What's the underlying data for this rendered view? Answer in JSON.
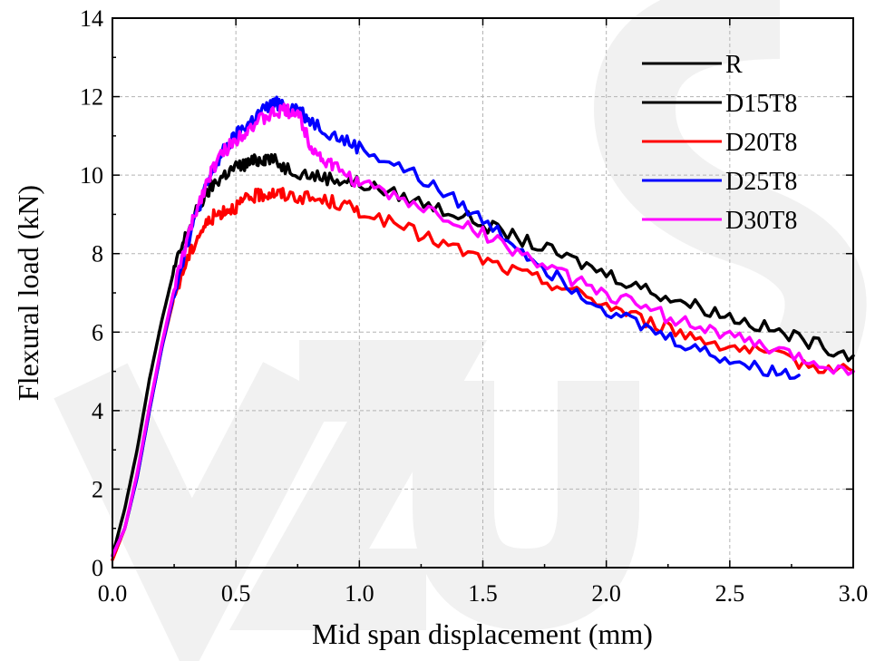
{
  "chart_data": {
    "type": "line",
    "title": "",
    "xlabel": "Mid span displacement (mm)",
    "ylabel": "Flexural load (kN)",
    "xlim": [
      0,
      3.0
    ],
    "ylim": [
      0,
      14
    ],
    "xticks": [
      "0.0",
      "0.5",
      "1.0",
      "1.5",
      "2.0",
      "2.5",
      "3.0"
    ],
    "yticks": [
      "0",
      "2",
      "4",
      "6",
      "8",
      "10",
      "12",
      "14"
    ],
    "grid": true,
    "legend_position": "top-right",
    "series": [
      {
        "name": "R",
        "color": "#000000",
        "x": [],
        "y": []
      },
      {
        "name": "D15T8",
        "color": "#000000",
        "x": [
          0,
          0.05,
          0.1,
          0.15,
          0.2,
          0.25,
          0.3,
          0.35,
          0.4,
          0.45,
          0.5,
          0.55,
          0.6,
          0.63,
          0.7,
          0.8,
          0.9,
          1.0,
          1.2,
          1.4,
          1.6,
          1.8,
          2.0,
          2.2,
          2.4,
          2.6,
          2.8,
          3.0
        ],
        "y": [
          0.3,
          1.5,
          3.0,
          4.8,
          6.3,
          7.6,
          8.5,
          9.2,
          9.7,
          10.0,
          10.2,
          10.3,
          10.4,
          10.45,
          10.2,
          10.0,
          9.9,
          9.8,
          9.4,
          9.0,
          8.5,
          8.0,
          7.5,
          7.0,
          6.6,
          6.2,
          5.8,
          5.4
        ]
      },
      {
        "name": "D20T8",
        "color": "#ff0000",
        "x": [
          0,
          0.05,
          0.1,
          0.15,
          0.2,
          0.25,
          0.3,
          0.35,
          0.4,
          0.45,
          0.5,
          0.55,
          0.6,
          0.65,
          0.7,
          0.8,
          0.9,
          1.0,
          1.2,
          1.4,
          1.6,
          1.8,
          2.0,
          2.2,
          2.4,
          2.6,
          2.8,
          3.0
        ],
        "y": [
          0.2,
          1.0,
          2.3,
          4.0,
          5.6,
          6.9,
          7.8,
          8.5,
          8.9,
          9.1,
          9.2,
          9.4,
          9.5,
          9.55,
          9.5,
          9.4,
          9.3,
          9.1,
          8.6,
          8.1,
          7.6,
          7.2,
          6.7,
          6.2,
          5.8,
          5.5,
          5.2,
          5.0
        ]
      },
      {
        "name": "D25T8",
        "color": "#0000ff",
        "x": [
          0,
          0.05,
          0.1,
          0.15,
          0.2,
          0.25,
          0.3,
          0.35,
          0.4,
          0.45,
          0.5,
          0.55,
          0.6,
          0.65,
          0.68,
          0.75,
          0.8,
          0.9,
          1.0,
          1.2,
          1.4,
          1.6,
          1.8,
          2.0,
          2.2,
          2.4,
          2.6,
          2.78
        ],
        "y": [
          0.3,
          1.0,
          2.3,
          4.0,
          5.6,
          7.0,
          8.2,
          9.2,
          10.0,
          10.6,
          11.0,
          11.3,
          11.6,
          11.8,
          11.85,
          11.7,
          11.4,
          11.0,
          10.7,
          10.1,
          9.3,
          8.4,
          7.4,
          6.6,
          6.0,
          5.5,
          5.1,
          4.9
        ]
      },
      {
        "name": "D30T8",
        "color": "#ff00ff",
        "x": [
          0,
          0.05,
          0.1,
          0.15,
          0.2,
          0.25,
          0.3,
          0.35,
          0.4,
          0.45,
          0.5,
          0.55,
          0.6,
          0.65,
          0.7,
          0.75,
          0.8,
          0.85,
          0.9,
          1.0,
          1.2,
          1.4,
          1.6,
          1.8,
          2.0,
          2.2,
          2.4,
          2.6,
          2.8,
          3.0
        ],
        "y": [
          0.3,
          1.0,
          2.4,
          4.1,
          5.7,
          7.1,
          8.3,
          9.3,
          10.1,
          10.6,
          10.9,
          11.2,
          11.4,
          11.55,
          11.65,
          11.6,
          10.8,
          10.4,
          10.2,
          9.8,
          9.3,
          8.8,
          8.2,
          7.5,
          7.0,
          6.5,
          6.1,
          5.7,
          5.3,
          5.0
        ]
      }
    ]
  }
}
